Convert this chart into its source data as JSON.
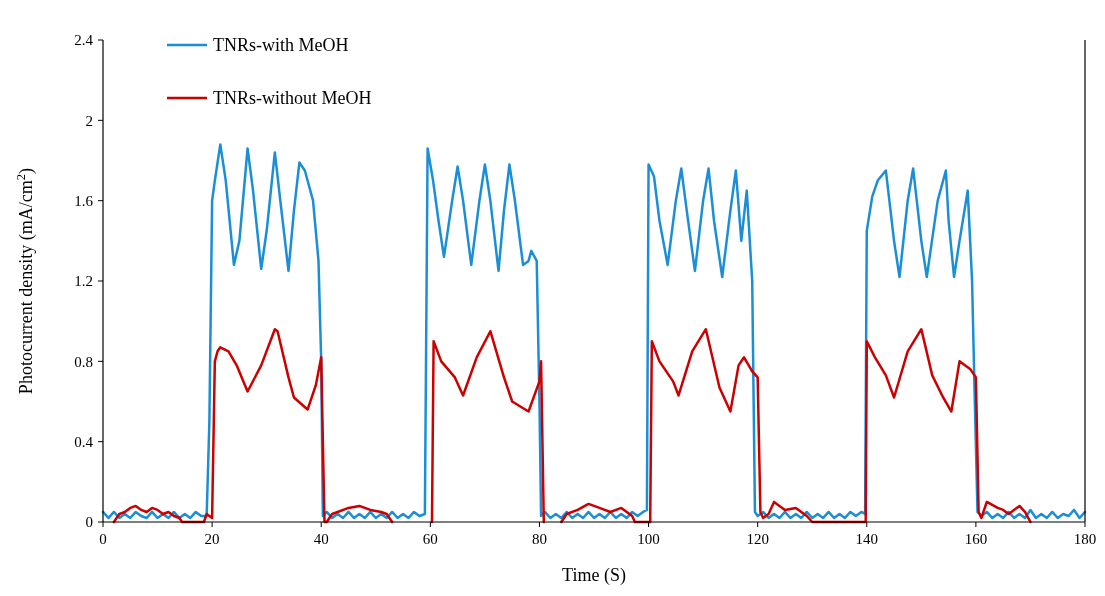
{
  "chart_data": {
    "type": "line",
    "xlabel": "Time (S)",
    "ylabel": "Photocurrent density (mA/cm$^{2}$)",
    "xlim": [
      0,
      180
    ],
    "ylim": [
      0,
      2.4
    ],
    "xticks": [
      0,
      20,
      40,
      60,
      80,
      100,
      120,
      140,
      160,
      180
    ],
    "yticks": [
      0,
      0.4,
      0.8,
      1.2,
      {
        "value": 1.6,
        "label": "1.6"
      },
      2,
      2.4
    ],
    "grid": false,
    "legend": "top left",
    "line_style": "solid",
    "marker": "none",
    "series": [
      {
        "name": "TNRs-with MeOH",
        "color": "#1b8fd6",
        "x": [
          0,
          1,
          2,
          3,
          4,
          5,
          6,
          7,
          8,
          9,
          10,
          11,
          12,
          13,
          14,
          15,
          16,
          17,
          18,
          19,
          19.5,
          20,
          20.5,
          21.5,
          22.5,
          24,
          25,
          26.5,
          27.5,
          29,
          30,
          31.5,
          32.5,
          34,
          35,
          36,
          37,
          38.5,
          39.5,
          40,
          40.3,
          41,
          42,
          43,
          44,
          45,
          46,
          47,
          48,
          49,
          50,
          51,
          52,
          53,
          54,
          55,
          56,
          57,
          58,
          59,
          59.5,
          60.5,
          61.5,
          62.5,
          64,
          65,
          66,
          67.5,
          69,
          70,
          71,
          72.5,
          73.5,
          74.5,
          75.5,
          77,
          78,
          78.5,
          79.5,
          80,
          80.3,
          81,
          82,
          83,
          84,
          85,
          86,
          87,
          88,
          89,
          90,
          91,
          92,
          93,
          94,
          95,
          96,
          97,
          98,
          99,
          99.7,
          100,
          101,
          102,
          103.5,
          105,
          106,
          107,
          108.5,
          110,
          111,
          112,
          113.5,
          115,
          116,
          117,
          118,
          119,
          119.5,
          120,
          121,
          122,
          123,
          124,
          125,
          126,
          127,
          128,
          129,
          130,
          131,
          132,
          133,
          134,
          135,
          136,
          137,
          138,
          139,
          139.7,
          140,
          141,
          142,
          143.5,
          145,
          146,
          147.5,
          148.5,
          150,
          151,
          153,
          154.5,
          155,
          156,
          157,
          158.5,
          159.3,
          159.8,
          160.3,
          161,
          162,
          163,
          164,
          165,
          166,
          167,
          168,
          169,
          170,
          171,
          172,
          173,
          174,
          175,
          176,
          177,
          178,
          179,
          180
        ],
        "values": [
          0.05,
          0.02,
          0.05,
          0.02,
          0.04,
          0.02,
          0.05,
          0.03,
          0.02,
          0.05,
          0.02,
          0.04,
          0.02,
          0.05,
          0.02,
          0.04,
          0.02,
          0.05,
          0.03,
          0.03,
          0.5,
          1.6,
          1.7,
          1.88,
          1.7,
          1.28,
          1.4,
          1.86,
          1.65,
          1.26,
          1.45,
          1.84,
          1.6,
          1.25,
          1.55,
          1.79,
          1.75,
          1.6,
          1.3,
          0.8,
          0.03,
          0.05,
          0.02,
          0.04,
          0.02,
          0.05,
          0.02,
          0.04,
          0.02,
          0.05,
          0.02,
          0.04,
          0.02,
          0.05,
          0.02,
          0.04,
          0.02,
          0.05,
          0.03,
          0.04,
          1.86,
          1.7,
          1.5,
          1.32,
          1.6,
          1.77,
          1.6,
          1.28,
          1.6,
          1.78,
          1.6,
          1.25,
          1.55,
          1.78,
          1.6,
          1.28,
          1.3,
          1.35,
          1.3,
          0.6,
          0.03,
          0.05,
          0.02,
          0.04,
          0.02,
          0.05,
          0.02,
          0.04,
          0.02,
          0.05,
          0.02,
          0.04,
          0.02,
          0.05,
          0.02,
          0.04,
          0.02,
          0.05,
          0.03,
          0.05,
          0.06,
          1.78,
          1.72,
          1.5,
          1.28,
          1.6,
          1.76,
          1.55,
          1.25,
          1.6,
          1.76,
          1.5,
          1.22,
          1.55,
          1.75,
          1.4,
          1.65,
          1.2,
          0.05,
          0.03,
          0.05,
          0.02,
          0.04,
          0.02,
          0.05,
          0.02,
          0.04,
          0.02,
          0.05,
          0.02,
          0.04,
          0.02,
          0.05,
          0.02,
          0.04,
          0.02,
          0.05,
          0.03,
          0.05,
          0.04,
          1.45,
          1.62,
          1.7,
          1.75,
          1.4,
          1.22,
          1.6,
          1.76,
          1.4,
          1.22,
          1.6,
          1.75,
          1.5,
          1.22,
          1.4,
          1.65,
          1.2,
          0.6,
          0.05,
          0.03,
          0.05,
          0.02,
          0.04,
          0.02,
          0.05,
          0.02,
          0.04,
          0.02,
          0.06,
          0.02,
          0.04,
          0.02,
          0.05,
          0.02,
          0.04,
          0.03,
          0.06,
          0.02,
          0.05
        ]
      },
      {
        "name": "TNRs-without MeOH",
        "color": "#cc0000",
        "x": [
          2,
          3,
          4,
          5,
          6,
          7,
          8,
          9,
          10,
          11,
          12,
          13,
          14,
          14.5,
          18.5,
          19,
          20,
          20.5,
          21,
          21.5,
          23,
          24.5,
          26.5,
          29,
          31.5,
          32,
          34,
          35,
          37.5,
          39,
          40,
          40.3,
          40.6,
          41,
          42,
          43,
          45,
          47,
          49,
          51,
          52,
          53,
          58,
          60.3,
          60.6,
          62,
          64.5,
          66,
          68.5,
          71,
          73.5,
          75,
          78,
          80,
          80.3,
          80.8,
          81,
          84,
          85,
          87,
          89,
          91,
          93,
          95,
          97,
          97.5,
          100.3,
          100.6,
          102,
          104.5,
          105.5,
          108,
          110.5,
          113,
          115,
          116.5,
          117.5,
          119,
          120,
          120.5,
          121,
          122,
          123,
          125,
          127,
          129,
          130,
          139.8,
          140,
          141.5,
          143.5,
          145,
          147.5,
          150,
          152,
          154,
          155.5,
          157,
          159,
          160,
          160.5,
          161,
          162,
          164,
          165,
          166,
          168,
          169,
          170
        ],
        "values": [
          0,
          0.04,
          0.05,
          0.07,
          0.08,
          0.06,
          0.05,
          0.07,
          0.06,
          0.04,
          0.05,
          0.03,
          0.02,
          0,
          0,
          0.04,
          0.02,
          0.8,
          0.85,
          0.87,
          0.85,
          0.78,
          0.65,
          0.78,
          0.96,
          0.95,
          0.72,
          0.62,
          0.56,
          0.68,
          0.82,
          0.4,
          0,
          0,
          0.04,
          0.05,
          0.07,
          0.08,
          0.06,
          0.05,
          0.04,
          0,
          null,
          0,
          0.9,
          0.8,
          0.72,
          0.63,
          0.82,
          0.95,
          0.72,
          0.6,
          0.55,
          0.7,
          0.8,
          0,
          null,
          0,
          0.04,
          0.06,
          0.09,
          0.07,
          0.05,
          0.07,
          0.03,
          0,
          0,
          0.9,
          0.8,
          0.7,
          0.63,
          0.85,
          0.96,
          0.67,
          0.55,
          0.78,
          0.82,
          0.75,
          0.72,
          0.05,
          0.02,
          0.04,
          0.1,
          0.06,
          0.07,
          0.03,
          0,
          0,
          0.9,
          0.82,
          0.73,
          0.62,
          0.85,
          0.96,
          0.73,
          0.62,
          0.55,
          0.8,
          0.76,
          0.72,
          0.05,
          0.02,
          0.1,
          0.07,
          0.06,
          0.04,
          0.08,
          0.05,
          0
        ]
      }
    ]
  }
}
